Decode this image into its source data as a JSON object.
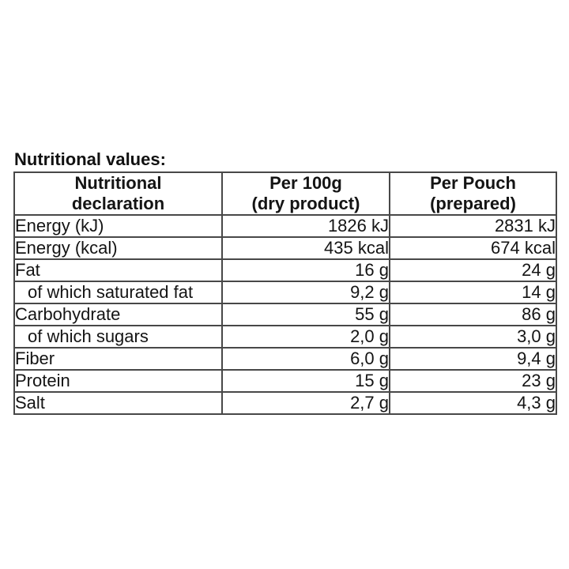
{
  "title": "Nutritional values:",
  "colors": {
    "background": "#ffffff",
    "text": "#141414",
    "table_border": "#484848"
  },
  "table": {
    "columns": [
      {
        "id": "declaration",
        "line1": "Nutritional",
        "line2": "declaration"
      },
      {
        "id": "per_100g",
        "line1": "Per 100g",
        "line2": "(dry product)"
      },
      {
        "id": "per_pouch",
        "line1": "Per Pouch",
        "line2": "(prepared)"
      }
    ],
    "rows": [
      {
        "name": "Energy (kJ)",
        "indent": false,
        "per_100g": "1826 kJ",
        "per_pouch": "2831 kJ"
      },
      {
        "name": "Energy (kcal)",
        "indent": false,
        "per_100g": "435 kcal",
        "per_pouch": "674 kcal"
      },
      {
        "name": "Fat",
        "indent": false,
        "per_100g": "16 g",
        "per_pouch": "24 g"
      },
      {
        "name": "of which saturated fat",
        "indent": true,
        "per_100g": "9,2 g",
        "per_pouch": "14 g"
      },
      {
        "name": "Carbohydrate",
        "indent": false,
        "per_100g": "55 g",
        "per_pouch": "86 g"
      },
      {
        "name": "of which sugars",
        "indent": true,
        "per_100g": "2,0 g",
        "per_pouch": "3,0 g"
      },
      {
        "name": "Fiber",
        "indent": false,
        "per_100g": "6,0 g",
        "per_pouch": "9,4 g"
      },
      {
        "name": "Protein",
        "indent": false,
        "per_100g": "15 g",
        "per_pouch": "23 g"
      },
      {
        "name": "Salt",
        "indent": false,
        "per_100g": "2,7 g",
        "per_pouch": "4,3 g"
      }
    ]
  }
}
